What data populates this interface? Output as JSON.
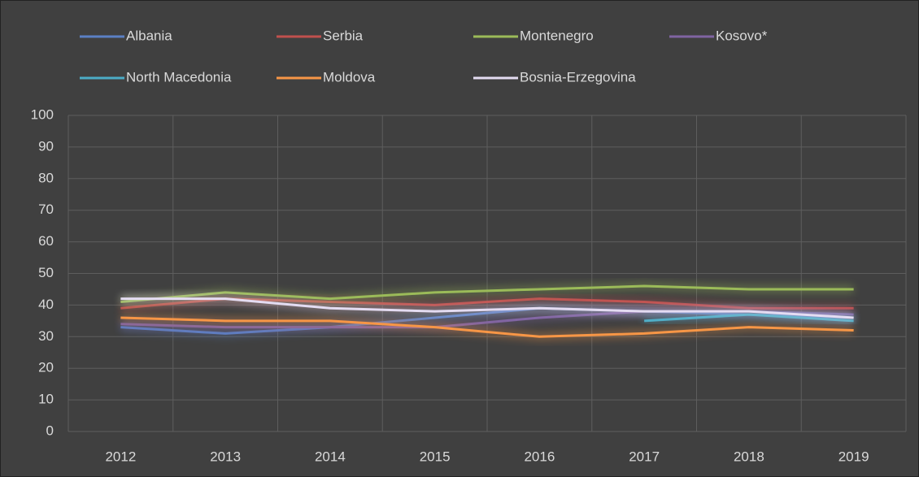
{
  "chart_data": {
    "type": "line",
    "categories": [
      "2012",
      "2013",
      "2014",
      "2015",
      "2016",
      "2017",
      "2018",
      "2019"
    ],
    "series": [
      {
        "name": "Albania",
        "color": "#5b80c4",
        "values": [
          33,
          31,
          33,
          36,
          39,
          38,
          37,
          36
        ]
      },
      {
        "name": "Serbia",
        "color": "#c0504d",
        "values": [
          39,
          42,
          41,
          40,
          42,
          41,
          39,
          39
        ]
      },
      {
        "name": "Montenegro",
        "color": "#9bbb59",
        "values": [
          41,
          44,
          42,
          44,
          45,
          46,
          45,
          45
        ]
      },
      {
        "name": "Kosovo*",
        "color": "#8064a2",
        "values": [
          34,
          33,
          33,
          33,
          36,
          38,
          38,
          37
        ]
      },
      {
        "name": "North Macedonia",
        "color": "#4bacc6",
        "values": [
          null,
          null,
          null,
          null,
          null,
          35,
          37,
          35
        ]
      },
      {
        "name": "Moldova",
        "color": "#f79646",
        "values": [
          36,
          35,
          35,
          33,
          30,
          31,
          33,
          32
        ]
      },
      {
        "name": "Bosnia-Erzegovina",
        "color": "#e4dcf2",
        "values": [
          42,
          42,
          39,
          38,
          39,
          38,
          38,
          36
        ]
      }
    ],
    "ylim": [
      0,
      100
    ],
    "yticks": [
      0,
      10,
      20,
      30,
      40,
      50,
      60,
      70,
      80,
      90,
      100
    ],
    "grid": true,
    "legend": "top"
  }
}
